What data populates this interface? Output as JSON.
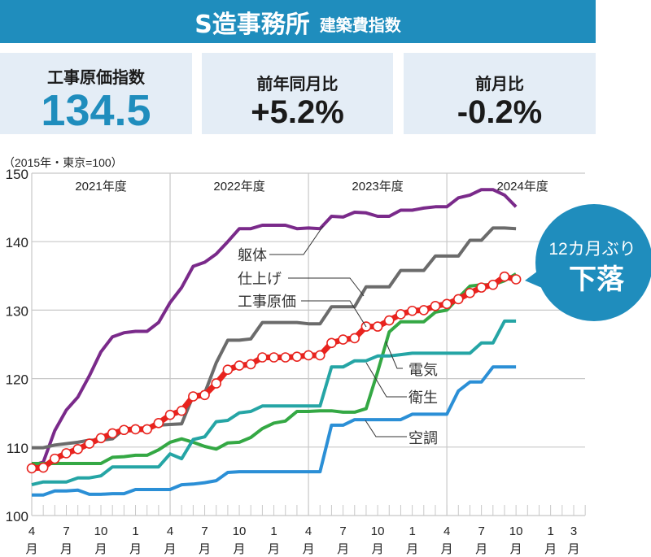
{
  "header": {
    "title": "S造事務所",
    "subtitle": "建築費指数"
  },
  "stats": [
    {
      "label": "工事原価指数",
      "value": "134.5"
    },
    {
      "label": "前年同月比",
      "value": "+5.2%"
    },
    {
      "label": "前月比",
      "value": "-0.2%"
    }
  ],
  "callout": {
    "line1": "12カ月ぶり",
    "line2": "下落",
    "color": "#1f8dbd"
  },
  "chart_data": {
    "type": "line",
    "unit_note": "（2015年・東京=100）",
    "ylim": [
      100,
      150
    ],
    "yticks": [
      "100",
      "110",
      "120",
      "130",
      "140",
      "150"
    ],
    "grid": true,
    "fiscal_years": [
      "2021年度",
      "2022年度",
      "2023年度",
      "2024年度"
    ],
    "x_tick_labels": [
      {
        "m": "4",
        "u": "月"
      },
      {
        "m": "7",
        "u": "月"
      },
      {
        "m": "10",
        "u": "月"
      },
      {
        "m": "1",
        "u": "月"
      },
      {
        "m": "4",
        "u": "月"
      },
      {
        "m": "7",
        "u": "月"
      },
      {
        "m": "10",
        "u": "月"
      },
      {
        "m": "1",
        "u": "月"
      },
      {
        "m": "4",
        "u": "月"
      },
      {
        "m": "7",
        "u": "月"
      },
      {
        "m": "10",
        "u": "月"
      },
      {
        "m": "1",
        "u": "月"
      },
      {
        "m": "4",
        "u": "月"
      },
      {
        "m": "7",
        "u": "月"
      },
      {
        "m": "10",
        "u": "月"
      },
      {
        "m": "1",
        "u": "月"
      },
      {
        "m": "3",
        "u": "月"
      }
    ],
    "x_range": [
      "2021-04",
      "2025-03"
    ],
    "series": [
      {
        "name": "躯体",
        "color": "#7a2a8a",
        "values": [
          107.3,
          107.8,
          112.4,
          115.4,
          117.3,
          120.4,
          123.9,
          126.1,
          126.7,
          126.9,
          126.9,
          128.2,
          131.1,
          133.3,
          136.4,
          137.0,
          138.2,
          140.0,
          141.9,
          141.9,
          142.4,
          142.4,
          142.4,
          141.9,
          142.0,
          141.9,
          143.7,
          143.6,
          144.3,
          144.2,
          143.7,
          143.7,
          144.6,
          144.6,
          144.9,
          145.1,
          145.1,
          146.4,
          146.8,
          147.6,
          147.6,
          146.8,
          145.1
        ]
      },
      {
        "name": "仕上げ",
        "color": "#6b6b6b",
        "values": [
          109.9,
          109.9,
          110.3,
          110.5,
          110.7,
          111.0,
          111.0,
          111.2,
          112.6,
          112.6,
          112.6,
          113.2,
          113.3,
          113.4,
          117.5,
          117.9,
          122.3,
          125.6,
          125.6,
          125.8,
          128.2,
          128.2,
          128.2,
          128.2,
          128.0,
          128.0,
          130.5,
          130.5,
          130.5,
          133.4,
          133.4,
          133.4,
          135.8,
          135.8,
          135.8,
          137.9,
          137.9,
          137.9,
          140.2,
          140.2,
          142.0,
          142.0,
          141.9
        ]
      },
      {
        "name": "電気",
        "color": "#34a844",
        "values": [
          107.6,
          107.6,
          107.6,
          107.6,
          107.6,
          107.6,
          107.6,
          108.5,
          108.6,
          108.8,
          108.8,
          109.6,
          110.7,
          111.2,
          110.7,
          110.1,
          109.7,
          110.6,
          110.7,
          111.4,
          112.7,
          113.5,
          113.8,
          115.2,
          115.2,
          115.3,
          115.3,
          115.1,
          115.1,
          115.6,
          121.0,
          126.8,
          128.3,
          128.3,
          128.3,
          129.7,
          130.0,
          131.8,
          133.5,
          133.7,
          133.7,
          134.3,
          135.3
        ]
      },
      {
        "name": "衛生",
        "color": "#25a5a5",
        "values": [
          104.5,
          104.9,
          104.9,
          104.9,
          105.5,
          105.5,
          105.8,
          107.1,
          107.1,
          107.1,
          107.1,
          107.1,
          109.0,
          108.3,
          111.1,
          111.5,
          113.7,
          113.9,
          115.0,
          115.2,
          116.0,
          116.0,
          116.0,
          116.0,
          116.0,
          116.0,
          121.7,
          121.7,
          122.6,
          122.6,
          123.3,
          123.3,
          123.5,
          123.7,
          123.7,
          123.7,
          123.7,
          123.7,
          123.7,
          125.2,
          125.2,
          128.4,
          128.4
        ]
      },
      {
        "name": "空調",
        "color": "#2b8fd6",
        "values": [
          103.0,
          103.0,
          103.6,
          103.6,
          103.7,
          103.1,
          103.1,
          103.2,
          103.2,
          103.8,
          103.8,
          103.8,
          103.8,
          104.5,
          104.6,
          104.8,
          105.1,
          106.3,
          106.4,
          106.4,
          106.4,
          106.4,
          106.4,
          106.4,
          106.4,
          106.4,
          113.2,
          113.2,
          114.0,
          114.0,
          114.0,
          114.0,
          114.0,
          114.8,
          114.8,
          114.8,
          114.8,
          118.2,
          119.5,
          119.5,
          121.7,
          121.7,
          121.7
        ]
      },
      {
        "name": "工事原価",
        "color": "#e8231e",
        "values": [
          106.9,
          107.0,
          108.3,
          109.1,
          109.7,
          110.5,
          111.3,
          112.0,
          112.5,
          112.6,
          112.6,
          113.5,
          114.7,
          115.3,
          117.4,
          117.6,
          119.3,
          121.3,
          121.9,
          122.1,
          123.1,
          123.1,
          123.1,
          123.2,
          123.4,
          123.4,
          125.2,
          125.7,
          125.9,
          127.6,
          127.6,
          128.5,
          129.4,
          129.9,
          130.0,
          130.6,
          130.9,
          131.6,
          132.5,
          133.3,
          133.7,
          134.9,
          134.5
        ]
      }
    ]
  }
}
